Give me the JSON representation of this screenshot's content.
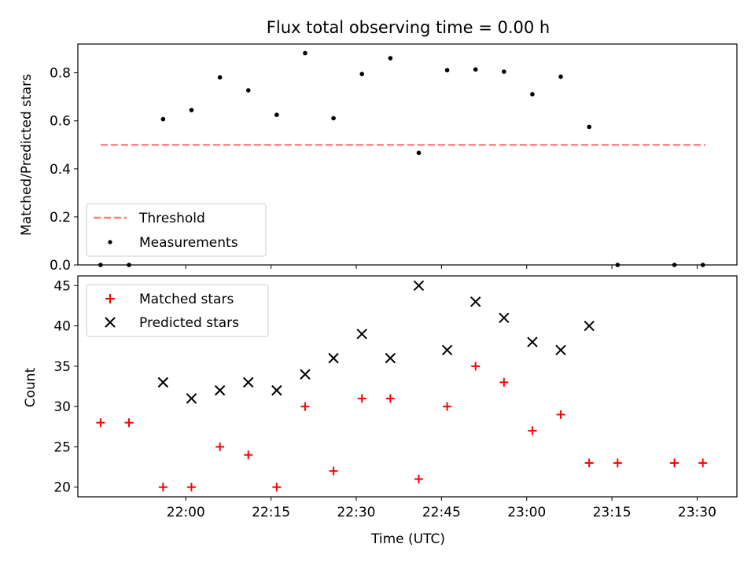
{
  "colors": {
    "threshold": "#ff7f7f",
    "measurement": "#000000",
    "matched": "#ff0000",
    "predicted": "#000000"
  },
  "chart_data": [
    {
      "type": "scatter",
      "title": "Flux total observing time = 0.00 h",
      "xlabel": "",
      "ylabel": "Matched/Predicted stars",
      "ylim": [
        0,
        0.92
      ],
      "yticks": [
        "0.0",
        "0.2",
        "0.4",
        "0.6",
        "0.8"
      ],
      "legend": {
        "placement": "lower-left",
        "entries": [
          "Threshold",
          "Measurements"
        ]
      },
      "series": [
        {
          "name": "Threshold",
          "kind": "dashed-line",
          "points": [
            [
              "21:45",
              0.5
            ],
            [
              "23:37",
              0.5
            ]
          ]
        },
        {
          "name": "Measurements",
          "kind": "dot",
          "points": [
            [
              "21:45",
              0.0
            ],
            [
              "21:50",
              0.0
            ],
            [
              "21:56",
              0.607
            ],
            [
              "22:01",
              0.645
            ],
            [
              "22:06",
              0.781
            ],
            [
              "22:11",
              0.727
            ],
            [
              "22:16",
              0.625
            ],
            [
              "22:21",
              0.882
            ],
            [
              "22:26",
              0.611
            ],
            [
              "22:31",
              0.795
            ],
            [
              "22:36",
              0.861
            ],
            [
              "22:41",
              0.467
            ],
            [
              "22:46",
              0.811
            ],
            [
              "22:51",
              0.814
            ],
            [
              "22:56",
              0.805
            ],
            [
              "23:01",
              0.711
            ],
            [
              "23:06",
              0.784
            ],
            [
              "23:11",
              0.575
            ],
            [
              "23:16",
              0.0
            ],
            [
              "23:26",
              0.0
            ],
            [
              "23:31",
              0.0
            ]
          ]
        }
      ]
    },
    {
      "type": "scatter",
      "title": "",
      "xlabel": "Time (UTC)",
      "ylabel": "Count",
      "ylim": [
        18.8,
        46.2
      ],
      "yticks": [
        "20",
        "25",
        "30",
        "35",
        "40",
        "45"
      ],
      "xticks": [
        "22:00",
        "22:15",
        "22:30",
        "22:45",
        "23:00",
        "23:15",
        "23:30"
      ],
      "xlim": [
        "21:41",
        "23:37"
      ],
      "legend": {
        "placement": "upper-left",
        "entries": [
          "Matched stars",
          "Predicted stars"
        ]
      },
      "series": [
        {
          "name": "Matched stars",
          "kind": "plus",
          "points": [
            [
              "21:45",
              28
            ],
            [
              "21:50",
              28
            ],
            [
              "21:56",
              20
            ],
            [
              "22:01",
              20
            ],
            [
              "22:06",
              25
            ],
            [
              "22:11",
              24
            ],
            [
              "22:16",
              20
            ],
            [
              "22:21",
              30
            ],
            [
              "22:26",
              22
            ],
            [
              "22:31",
              31
            ],
            [
              "22:36",
              31
            ],
            [
              "22:41",
              21
            ],
            [
              "22:46",
              30
            ],
            [
              "22:51",
              35
            ],
            [
              "22:56",
              33
            ],
            [
              "23:01",
              27
            ],
            [
              "23:06",
              29
            ],
            [
              "23:11",
              23
            ],
            [
              "23:16",
              23
            ],
            [
              "23:26",
              23
            ],
            [
              "23:31",
              23
            ]
          ]
        },
        {
          "name": "Predicted stars",
          "kind": "x",
          "points": [
            [
              "21:56",
              33
            ],
            [
              "22:01",
              31
            ],
            [
              "22:06",
              32
            ],
            [
              "22:11",
              33
            ],
            [
              "22:16",
              32
            ],
            [
              "22:21",
              34
            ],
            [
              "22:26",
              36
            ],
            [
              "22:31",
              39
            ],
            [
              "22:36",
              36
            ],
            [
              "22:41",
              45
            ],
            [
              "22:46",
              37
            ],
            [
              "22:51",
              43
            ],
            [
              "22:56",
              41
            ],
            [
              "23:01",
              38
            ],
            [
              "23:06",
              37
            ],
            [
              "23:11",
              40
            ]
          ]
        }
      ]
    }
  ]
}
